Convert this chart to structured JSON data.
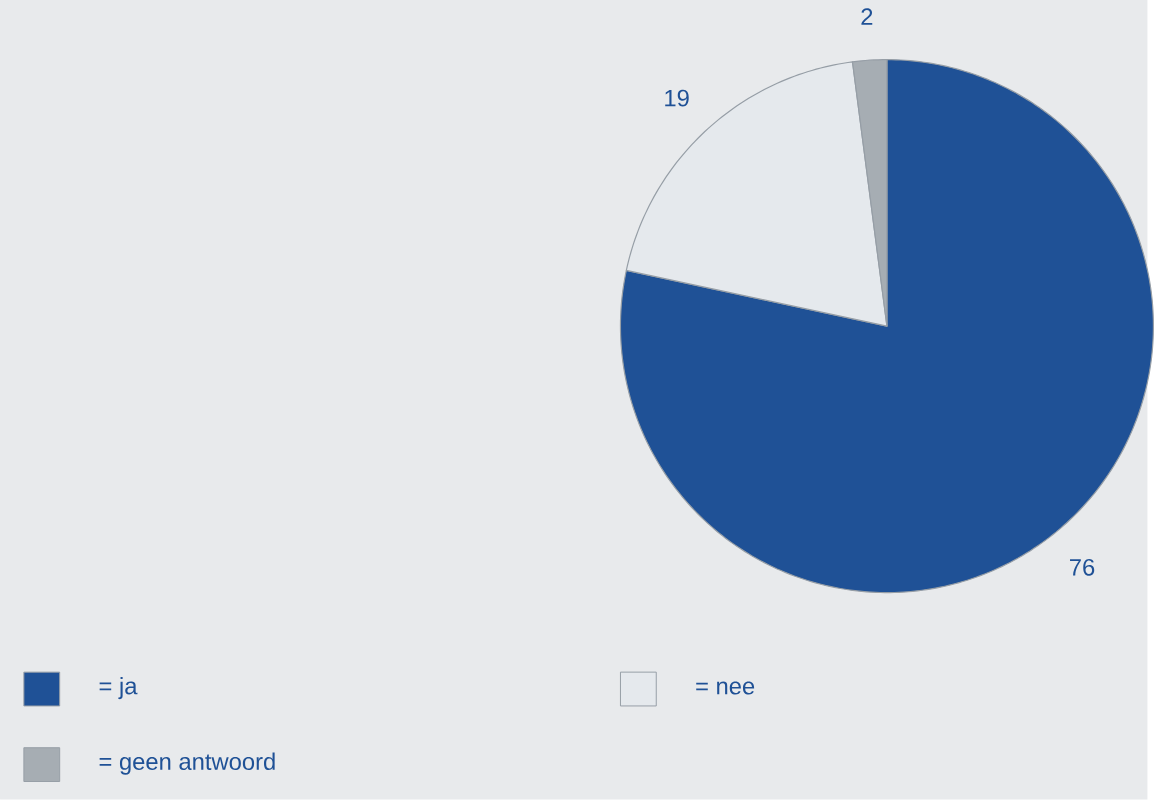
{
  "chart_data": {
    "type": "pie",
    "categories": [
      "= ja",
      "= nee",
      "= geen antwoord"
    ],
    "values": [
      76,
      19,
      2
    ],
    "colors": [
      "#1f5196",
      "#e5e9ed",
      "#a6adb3"
    ],
    "data_labels": true,
    "legend": "bottom"
  }
}
